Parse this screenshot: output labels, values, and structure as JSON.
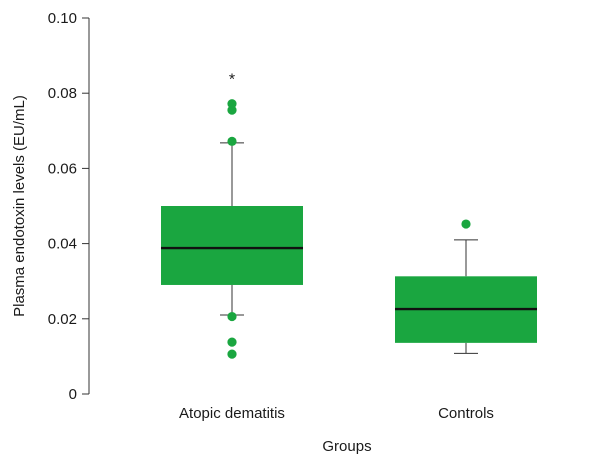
{
  "chart_data": {
    "type": "box",
    "title": "",
    "xlabel": "Groups",
    "ylabel": "Plasma endotoxin levels (EU/mL)",
    "ylim": [
      0,
      0.1
    ],
    "yticks": [
      {
        "value": 0,
        "label": "0"
      },
      {
        "value": 0.02,
        "label": "0.02"
      },
      {
        "value": 0.04,
        "label": "0.04"
      },
      {
        "value": 0.06,
        "label": "0.06"
      },
      {
        "value": 0.08,
        "label": "0.08"
      },
      {
        "value": 0.1,
        "label": "0.10"
      }
    ],
    "grid": false,
    "legend": "none",
    "box_color": "#1aa640",
    "median_color": "#111111",
    "whisker_color": "#333333",
    "categories": [
      "Atopic dematitis",
      "Controls"
    ],
    "boxes": [
      {
        "category": "Atopic dematitis",
        "whisker_low": 0.021,
        "q1": 0.029,
        "median": 0.0388,
        "q3": 0.05,
        "whisker_high": 0.0668,
        "outliers": [
          0.0772,
          0.0755,
          0.0672,
          0.0206,
          0.0138,
          0.0106
        ],
        "annotation": "*"
      },
      {
        "category": "Controls",
        "whisker_low": 0.0108,
        "q1": 0.0136,
        "median": 0.0226,
        "q3": 0.0313,
        "whisker_high": 0.041,
        "outliers": [
          0.0452
        ],
        "annotation": ""
      }
    ]
  }
}
